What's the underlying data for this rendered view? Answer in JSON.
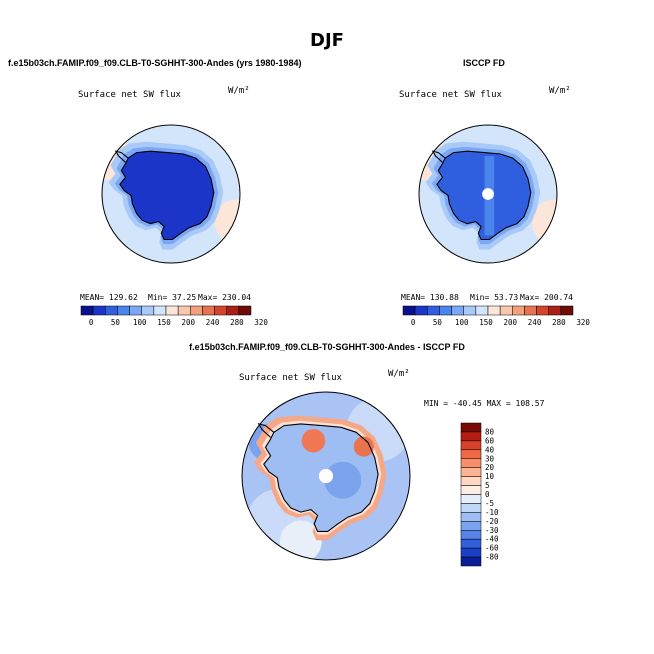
{
  "title": "DJF",
  "panels": [
    {
      "case": "f.e15b03ch.FAMIP.f09_f09.CLB-T0-SGHHT-300-Andes (yrs 1980-1984)",
      "variable": "Surface net SW flux",
      "units": "W/m²",
      "stats": {
        "mean_label": "MEAN= 129.62",
        "min_label": "Min= 37.25",
        "max_label": "Max= 230.04"
      }
    },
    {
      "case": "ISCCP FD",
      "variable": "Surface net SW flux",
      "units": "W/m²",
      "stats": {
        "mean_label": "MEAN= 130.88",
        "min_label": "Min= 53.73",
        "max_label": "Max= 200.74"
      }
    },
    {
      "case": "f.e15b03ch.FAMIP.f09_f09.CLB-T0-SGHHT-300-Andes - ISCCP FD",
      "variable": "Surface net SW flux",
      "units": "W/m²",
      "stats_label": "MIN = -40.45 MAX = 108.57"
    }
  ],
  "chart_data": [
    {
      "type": "heatmap",
      "projection": "south-polar-stereographic",
      "title": "f.e15b03ch.FAMIP.f09_f09.CLB-T0-SGHHT-300-Andes (yrs 1980-1984)",
      "variable": "Surface net SW flux",
      "units": "W/m²",
      "mean": 129.62,
      "min": 37.25,
      "max": 230.04,
      "colorbar": {
        "orientation": "horizontal",
        "ticks": [
          "0",
          "50",
          "100",
          "150",
          "200",
          "240",
          "280",
          "320"
        ],
        "colors": [
          "#0a0f8c",
          "#1a35c8",
          "#2f5fdf",
          "#4b84ec",
          "#7aa8f4",
          "#a9c9f9",
          "#d3e5fb",
          "#fbe6d9",
          "#f9c7ac",
          "#f3a07c",
          "#e8734f",
          "#d5452c",
          "#a92016",
          "#6e0b08"
        ]
      }
    },
    {
      "type": "heatmap",
      "projection": "south-polar-stereographic",
      "title": "ISCCP FD",
      "variable": "Surface net SW flux",
      "units": "W/m²",
      "mean": 130.88,
      "min": 53.73,
      "max": 200.74,
      "colorbar": {
        "orientation": "horizontal",
        "ticks": [
          "0",
          "50",
          "100",
          "150",
          "200",
          "240",
          "280",
          "320"
        ],
        "colors": [
          "#0a0f8c",
          "#1a35c8",
          "#2f5fdf",
          "#4b84ec",
          "#7aa8f4",
          "#a9c9f9",
          "#d3e5fb",
          "#fbe6d9",
          "#f9c7ac",
          "#f3a07c",
          "#e8734f",
          "#d5452c",
          "#a92016",
          "#6e0b08"
        ]
      }
    },
    {
      "type": "heatmap",
      "projection": "south-polar-stereographic",
      "title": "f.e15b03ch.FAMIP.f09_f09.CLB-T0-SGHHT-300-Andes - ISCCP FD",
      "variable": "Surface net SW flux",
      "units": "W/m²",
      "min": -40.45,
      "max": 108.57,
      "colorbar": {
        "orientation": "vertical",
        "ticks": [
          "80",
          "60",
          "40",
          "30",
          "20",
          "10",
          "5",
          "0",
          "-5",
          "-10",
          "-20",
          "-30",
          "-40",
          "-60",
          "-80"
        ],
        "colors": [
          "#7a0a06",
          "#b51d12",
          "#d9412a",
          "#ee6a47",
          "#f78f6c",
          "#fbb394",
          "#fdd7c1",
          "#fdeee3",
          "#e5eefb",
          "#c0d7f7",
          "#9dbdf3",
          "#7ba2ed",
          "#5684e6",
          "#3160dc",
          "#1b3ec7",
          "#0b1e96"
        ]
      }
    }
  ]
}
